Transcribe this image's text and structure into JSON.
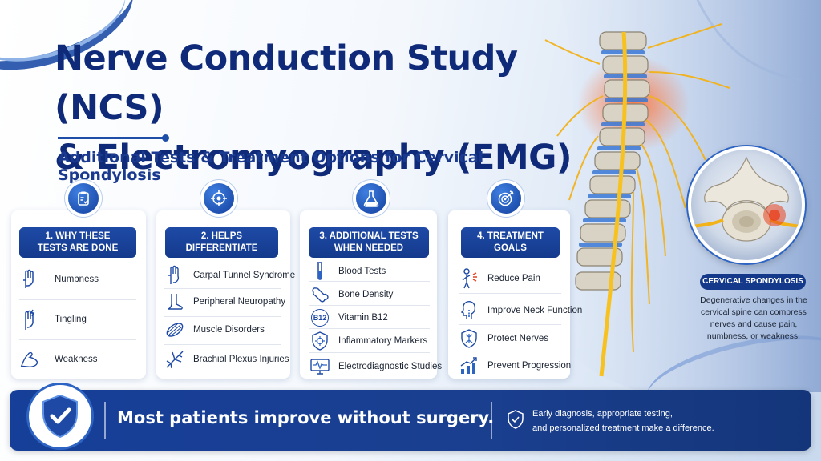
{
  "title": {
    "line1": "Nerve Conduction Study (NCS)",
    "line2": "& Electromyography (EMG)"
  },
  "subtitle": "Additional Tests & Treatment Options for Cervical Spondylosis",
  "columns": [
    {
      "icon": "clipboard-check-icon",
      "heading_line1": "1. WHY THESE",
      "heading_line2": "TESTS ARE DONE",
      "items": [
        {
          "label": "Numbness",
          "icon": "hand-icon"
        },
        {
          "label": "Tingling",
          "icon": "tingling-hand-icon"
        },
        {
          "label": "Weakness",
          "icon": "flexed-arm-icon"
        }
      ]
    },
    {
      "icon": "target-crosshair-icon",
      "heading_line1": "2. HELPS",
      "heading_line2": "DIFFERENTIATE",
      "items": [
        {
          "label": "Carpal Tunnel Syndrome",
          "icon": "hand-outline-icon"
        },
        {
          "label": "Peripheral Neuropathy",
          "icon": "foot-icon"
        },
        {
          "label": "Muscle Disorders",
          "icon": "muscle-fiber-icon"
        },
        {
          "label": "Brachial Plexus Injuries",
          "icon": "nerve-branch-icon"
        }
      ]
    },
    {
      "icon": "flask-icon",
      "heading_line1": "3. ADDITIONAL TESTS",
      "heading_line2": "WHEN NEEDED",
      "items": [
        {
          "label": "Blood Tests",
          "icon": "test-tube-icon"
        },
        {
          "label": "Bone Density",
          "icon": "bone-icon"
        },
        {
          "label": "Vitamin B12",
          "icon": "b12-icon",
          "glyph": "B12"
        },
        {
          "label": "Inflammatory Markers",
          "icon": "shield-cell-icon"
        },
        {
          "label": "Electrodiagnostic Studies",
          "icon": "monitor-waveform-icon"
        }
      ]
    },
    {
      "icon": "bullseye-arrow-icon",
      "heading_line1": "4. TREATMENT",
      "heading_line2": "GOALS",
      "items": [
        {
          "label": "Reduce Pain",
          "icon": "person-pain-icon"
        },
        {
          "label": "Improve Neck Function",
          "icon": "neck-profile-icon"
        },
        {
          "label": "Protect Nerves",
          "icon": "shield-nerve-icon"
        },
        {
          "label": "Prevent Progression",
          "icon": "bar-chart-up-icon"
        }
      ]
    }
  ],
  "side": {
    "badge": "CERVICAL SPONDYLOSIS",
    "description": "Degenerative changes in the cervical spine can compress nerves and cause pain, numbness, or weakness."
  },
  "banner": {
    "headline": "Most patients improve without surgery.",
    "note_line1": "Early diagnosis, appropriate testing,",
    "note_line2": "and personalized treatment make a difference."
  },
  "colors": {
    "navy": "#0f2a78",
    "blue": "#1e4aa6",
    "accent": "#2d64c4",
    "nerve": "#f2b21a",
    "inflammation": "#e8411e"
  }
}
